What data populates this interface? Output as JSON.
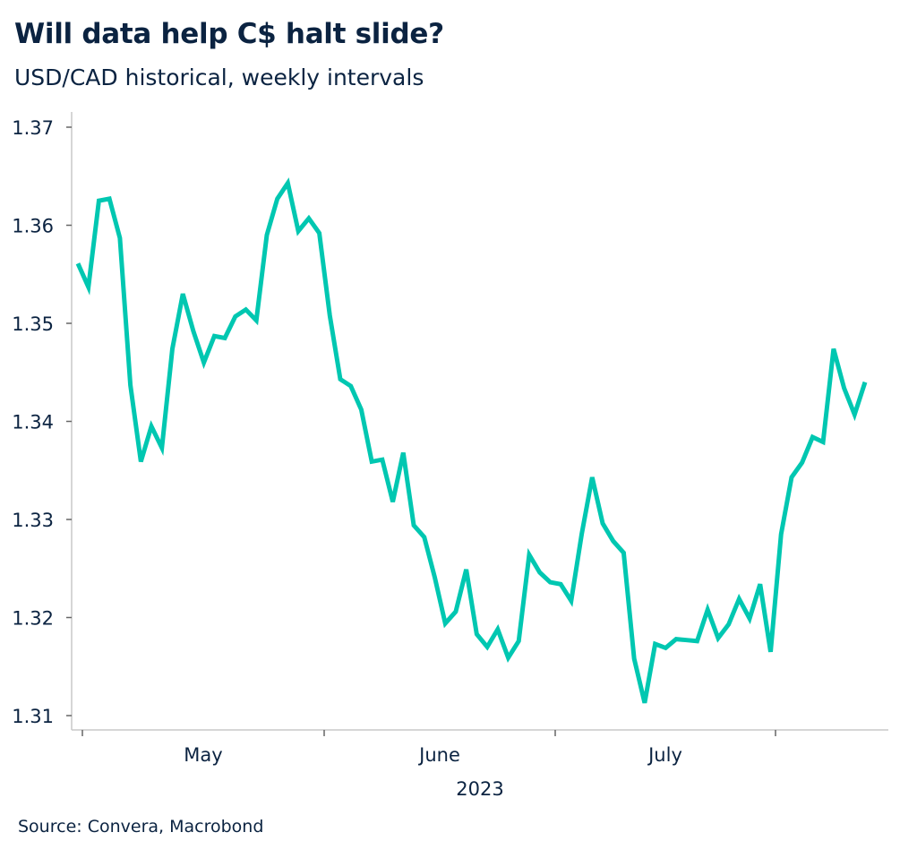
{
  "title": "Will data help C$ halt slide?",
  "subtitle": "USD/CAD historical, weekly intervals",
  "source": "Source: Convera, Macrobond",
  "chart_data": {
    "type": "line",
    "title": "Will data help C$ halt slide?",
    "subtitle": "USD/CAD historical, weekly intervals",
    "xlabel": "2023",
    "x_tick_labels": [
      "May",
      "June",
      "July"
    ],
    "y_ticks": [
      "1.31",
      "1.32",
      "1.33",
      "1.34",
      "1.35",
      "1.36",
      "1.37"
    ],
    "ylim": [
      1.31,
      1.37
    ],
    "grid": false,
    "color": "#00c7b1",
    "values": [
      1.3561,
      1.3537,
      1.3625,
      1.3627,
      1.3587,
      1.3437,
      1.3359,
      1.3395,
      1.3373,
      1.3474,
      1.353,
      1.3492,
      1.346,
      1.3487,
      1.3485,
      1.3507,
      1.3514,
      1.3503,
      1.359,
      1.3627,
      1.3643,
      1.3594,
      1.3607,
      1.3592,
      1.3508,
      1.3443,
      1.3436,
      1.3412,
      1.3359,
      1.3361,
      1.3318,
      1.3368,
      1.3294,
      1.3282,
      1.3241,
      1.3194,
      1.3206,
      1.3249,
      1.3183,
      1.317,
      1.3188,
      1.3159,
      1.3176,
      1.3264,
      1.3246,
      1.3236,
      1.3234,
      1.3217,
      1.3285,
      1.3343,
      1.3296,
      1.3278,
      1.3266,
      1.3158,
      1.3113,
      1.3173,
      1.3169,
      1.3178,
      1.3177,
      1.3176,
      1.3208,
      1.3179,
      1.3193,
      1.3219,
      1.3199,
      1.3234,
      1.3165,
      1.3285,
      1.3343,
      1.3358,
      1.3384,
      1.3379,
      1.3474,
      1.3434,
      1.3407,
      1.344
    ]
  }
}
